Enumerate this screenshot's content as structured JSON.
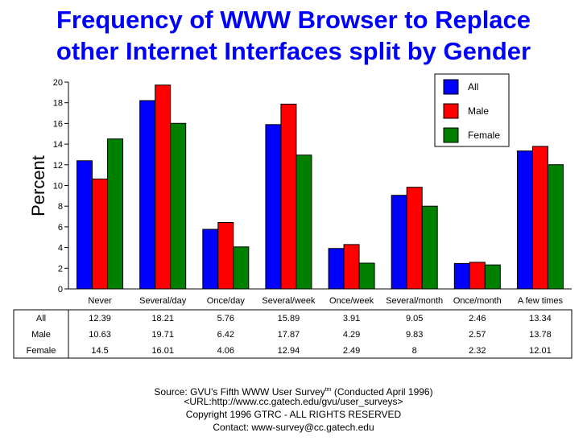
{
  "title_lines": [
    "Frequency of WWW Browser  to Replace",
    "other Internet Interfaces split by Gender"
  ],
  "chart_data": {
    "type": "bar",
    "title": "Frequency of WWW Browser  to Replace other Internet Interfaces split by Gender",
    "xlabel": "",
    "ylabel": "Percent",
    "ylim": [
      0,
      20
    ],
    "yticks": [
      0,
      2,
      4,
      6,
      8,
      10,
      12,
      14,
      16,
      18,
      20
    ],
    "categories": [
      "Never",
      "Several/day",
      "Once/day",
      "Several/week",
      "Once/week",
      "Several/month",
      "Once/month",
      "A few times"
    ],
    "series": [
      {
        "name": "All",
        "color": "#0000ff",
        "values": [
          12.39,
          18.21,
          5.76,
          15.89,
          3.91,
          9.05,
          2.46,
          13.34
        ]
      },
      {
        "name": "Male",
        "color": "#ff0000",
        "values": [
          10.63,
          19.71,
          6.42,
          17.87,
          4.29,
          9.83,
          2.57,
          13.78
        ]
      },
      {
        "name": "Female",
        "color": "#008000",
        "values": [
          14.5,
          16.01,
          4.06,
          12.94,
          2.49,
          8,
          2.32,
          12.01
        ]
      }
    ],
    "table_rows": [
      {
        "label": "All",
        "cells": [
          "12.39",
          "18.21",
          "5.76",
          "15.89",
          "3.91",
          "9.05",
          "2.46",
          "13.34"
        ]
      },
      {
        "label": "Male",
        "cells": [
          "10.63",
          "19.71",
          "6.42",
          "17.87",
          "4.29",
          "9.83",
          "2.57",
          "13.78"
        ]
      },
      {
        "label": "Female",
        "cells": [
          "14.5",
          "16.01",
          "4.06",
          "12.94",
          "2.49",
          "8",
          "2.32",
          "12.01"
        ]
      }
    ],
    "legend_position": "top-right",
    "grid": false
  },
  "source": {
    "line1_a": "Source: GVU's Fifth WWW User Survey",
    "line1_sup": "tm",
    "line1_b": "  (Conducted April 1996)",
    "line2": "<URL:http://www.cc.gatech.edu/gvu/user_surveys>",
    "line3": "Copyright 1996 GTRC -  ALL RIGHTS RESERVED",
    "line4": "Contact: www-survey@cc.gatech.edu"
  }
}
